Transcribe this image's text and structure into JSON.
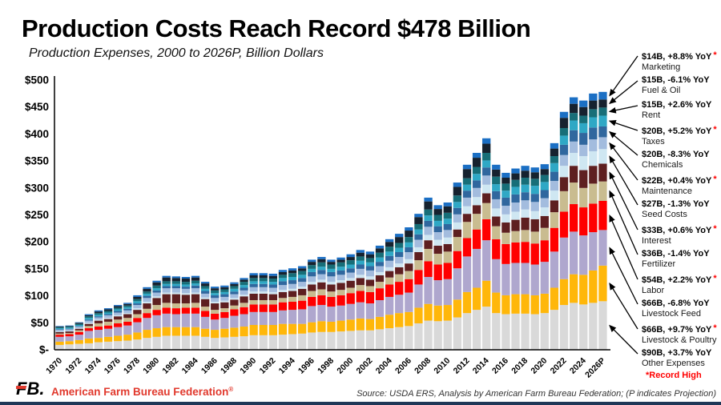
{
  "page": {
    "title": "Production Costs Reach Record $478 Billion",
    "subtitle": "Production Expenses, 2000 to 2026P, Billion Dollars",
    "source_note": "Source: USDA ERS, Analysis by American Farm Bureau Federation; (P indicates Projection)",
    "record_high_note": "*Record High",
    "brand_name": "American Farm Bureau Federation",
    "brand_registered": "®",
    "logo_text": "FB."
  },
  "colors": {
    "brand_red": "#e1392d",
    "record_red": "#ff0000",
    "axis_black": "#000000",
    "bottom_bar_navy": "#1f3757",
    "background": "#ffffff"
  },
  "chart_data": {
    "type": "bar",
    "stacked": true,
    "title": "Production Costs Reach Record $478 Billion",
    "subtitle": "Production Expenses, 2000 to 2026P, Billion Dollars",
    "ylabel": "Billion Dollars",
    "ylim": [
      0,
      500
    ],
    "grid": false,
    "legend_position": "right-callouts",
    "y_tick_labels": [
      "$500",
      "$450",
      "$400",
      "$350",
      "$300",
      "$250",
      "$200",
      "$150",
      "$100",
      "$50",
      "$-"
    ],
    "x": [
      1970,
      1971,
      1972,
      1973,
      1974,
      1975,
      1976,
      1977,
      1978,
      1979,
      1980,
      1981,
      1982,
      1983,
      1984,
      1985,
      1986,
      1987,
      1988,
      1989,
      1990,
      1991,
      1992,
      1993,
      1994,
      1995,
      1996,
      1997,
      1998,
      1999,
      2000,
      2001,
      2002,
      2003,
      2004,
      2005,
      2006,
      2007,
      2008,
      2009,
      2010,
      2011,
      2012,
      2013,
      2014,
      2015,
      2016,
      2017,
      2018,
      2019,
      2020,
      2021,
      2022,
      2023,
      2024,
      2025,
      2026
    ],
    "x_tick_labels": [
      "1970",
      "1972",
      "1974",
      "1976",
      "1978",
      "1980",
      "1982",
      "1984",
      "1986",
      "1988",
      "1990",
      "1992",
      "1994",
      "1996",
      "1998",
      "2000",
      "2002",
      "2004",
      "2006",
      "2008",
      "2010",
      "2012",
      "2014",
      "2016",
      "2018",
      "2020",
      "2022",
      "2024",
      "2026P"
    ],
    "total_2026": 478,
    "series": [
      {
        "name": "Other Expenses",
        "color": "#d9d9d9",
        "callout_value": "$90B, +3.7% YoY",
        "record_high": false,
        "values": [
          9,
          10,
          11,
          12,
          14,
          15,
          16,
          17,
          19,
          22,
          24,
          26,
          26,
          26,
          26,
          24,
          22,
          23,
          24,
          25,
          27,
          27,
          27,
          28,
          29,
          30,
          32,
          33,
          33,
          34,
          35,
          36,
          36,
          38,
          40,
          42,
          44,
          49,
          54,
          53,
          54,
          60,
          68,
          74,
          80,
          68,
          66,
          67,
          67,
          66,
          68,
          74,
          83,
          87,
          84,
          87,
          90
        ]
      },
      {
        "name": "Livestock & Poultry",
        "color": "#ffb70a",
        "callout_value": "$66B, +9.7% YoY",
        "record_high": true,
        "values": [
          6,
          6,
          7,
          9,
          8,
          9,
          10,
          11,
          13,
          15,
          16,
          16,
          16,
          16,
          16,
          15,
          15,
          16,
          17,
          18,
          19,
          19,
          19,
          20,
          19,
          18,
          19,
          20,
          19,
          20,
          21,
          22,
          21,
          23,
          25,
          26,
          26,
          29,
          31,
          29,
          29,
          33,
          39,
          41,
          48,
          38,
          35,
          36,
          36,
          35,
          36,
          41,
          48,
          53,
          55,
          60,
          66
        ]
      },
      {
        "name": "Livestock Feed",
        "color": "#afa7ce",
        "callout_value": "$66B, -6.8% YoY",
        "record_high": false,
        "values": [
          9,
          9,
          10,
          14,
          15,
          15,
          16,
          17,
          19,
          22,
          24,
          25,
          24,
          25,
          25,
          22,
          19,
          20,
          22,
          23,
          24,
          24,
          24,
          25,
          26,
          27,
          30,
          30,
          28,
          28,
          29,
          30,
          29,
          31,
          33,
          34,
          36,
          43,
          50,
          47,
          48,
          58,
          66,
          72,
          75,
          62,
          58,
          58,
          58,
          57,
          59,
          67,
          77,
          79,
          73,
          71,
          66
        ]
      },
      {
        "name": "Labor",
        "color": "#ff0000",
        "callout_value": "$54B, +2.2% YoY",
        "record_high": true,
        "values": [
          4,
          4,
          5,
          5,
          6,
          6,
          7,
          7,
          8,
          9,
          10,
          11,
          11,
          11,
          11,
          11,
          11,
          11,
          12,
          13,
          14,
          14,
          14,
          15,
          15,
          16,
          17,
          18,
          18,
          19,
          20,
          21,
          21,
          22,
          23,
          24,
          25,
          27,
          29,
          29,
          30,
          32,
          34,
          36,
          39,
          37,
          37,
          38,
          39,
          39,
          40,
          44,
          48,
          51,
          52,
          53,
          54
        ]
      },
      {
        "name": "Fertilizer",
        "color": "#c9bc90",
        "callout_value": "$36B, -1.4% YoY",
        "record_high": false,
        "values": [
          2,
          2,
          3,
          4,
          6,
          7,
          7,
          7,
          7,
          8,
          9,
          9,
          9,
          8,
          9,
          8,
          7,
          7,
          7,
          8,
          8,
          8,
          8,
          8,
          9,
          10,
          11,
          11,
          10,
          10,
          10,
          11,
          11,
          12,
          13,
          14,
          15,
          18,
          23,
          20,
          21,
          26,
          30,
          29,
          30,
          24,
          21,
          21,
          22,
          22,
          23,
          29,
          38,
          40,
          36,
          37,
          36
        ]
      },
      {
        "name": "Interest",
        "color": "#5e1f20",
        "callout_value": "$33B, +0.6% YoY",
        "record_high": true,
        "values": [
          3,
          3,
          3,
          4,
          5,
          5,
          6,
          7,
          8,
          10,
          13,
          16,
          17,
          16,
          16,
          14,
          12,
          11,
          11,
          12,
          12,
          12,
          11,
          11,
          11,
          12,
          12,
          13,
          13,
          13,
          13,
          13,
          12,
          12,
          12,
          13,
          14,
          15,
          16,
          15,
          14,
          14,
          15,
          16,
          18,
          18,
          19,
          21,
          23,
          23,
          22,
          22,
          26,
          31,
          33,
          33,
          33
        ]
      },
      {
        "name": "Seed Costs",
        "color": "#cfe7f2",
        "callout_value": "$27B, -1.3% YoY",
        "record_high": false,
        "values": [
          1,
          1,
          1,
          2,
          2,
          2,
          2,
          2,
          3,
          3,
          3,
          3,
          3,
          3,
          3,
          3,
          3,
          3,
          3,
          3,
          4,
          4,
          4,
          4,
          4,
          4,
          5,
          5,
          5,
          5,
          5,
          6,
          6,
          6,
          7,
          7,
          8,
          9,
          10,
          11,
          12,
          13,
          14,
          15,
          16,
          15,
          15,
          15,
          15,
          15,
          16,
          18,
          21,
          24,
          26,
          27,
          27
        ]
      },
      {
        "name": "Maintenance",
        "color": "#a3bcde",
        "callout_value": "$22B, +0.4% YoY",
        "record_high": true,
        "values": [
          3,
          3,
          3,
          4,
          4,
          5,
          5,
          5,
          6,
          7,
          7,
          8,
          8,
          8,
          8,
          7,
          7,
          7,
          7,
          8,
          8,
          8,
          8,
          9,
          9,
          9,
          10,
          10,
          10,
          10,
          10,
          11,
          11,
          11,
          12,
          12,
          13,
          14,
          15,
          14,
          14,
          15,
          16,
          17,
          17,
          17,
          16,
          17,
          17,
          17,
          17,
          18,
          20,
          21,
          21,
          22,
          22
        ]
      },
      {
        "name": "Chemicals",
        "color": "#30679e",
        "callout_value": "$20B, -8.3% YoY",
        "record_high": false,
        "values": [
          1,
          1,
          1,
          2,
          2,
          2,
          3,
          3,
          3,
          4,
          4,
          4,
          4,
          4,
          5,
          5,
          5,
          5,
          5,
          5,
          6,
          6,
          6,
          7,
          7,
          7,
          8,
          8,
          8,
          8,
          8,
          8,
          8,
          8,
          9,
          9,
          9,
          10,
          11,
          11,
          11,
          12,
          13,
          14,
          15,
          15,
          15,
          15,
          15,
          15,
          15,
          17,
          19,
          21,
          22,
          22,
          20
        ]
      },
      {
        "name": "Taxes",
        "color": "#2fa8c5",
        "callout_value": "$20B, +5.2% YoY",
        "record_high": true,
        "values": [
          2,
          2,
          2,
          3,
          3,
          3,
          3,
          3,
          4,
          4,
          4,
          4,
          4,
          4,
          4,
          4,
          4,
          4,
          5,
          5,
          5,
          5,
          5,
          6,
          6,
          6,
          6,
          6,
          6,
          7,
          7,
          7,
          7,
          8,
          8,
          8,
          9,
          9,
          10,
          10,
          10,
          11,
          11,
          12,
          13,
          13,
          13,
          14,
          14,
          15,
          15,
          16,
          17,
          18,
          18,
          19,
          20
        ]
      },
      {
        "name": "Rent",
        "color": "#176e78",
        "callout_value": "$15B, +2.6% YoY",
        "record_high": false,
        "values": [
          2,
          2,
          2,
          3,
          3,
          3,
          3,
          3,
          4,
          4,
          5,
          5,
          5,
          5,
          5,
          5,
          5,
          5,
          5,
          6,
          6,
          6,
          6,
          6,
          7,
          7,
          7,
          8,
          8,
          8,
          8,
          8,
          8,
          9,
          9,
          9,
          10,
          10,
          11,
          11,
          11,
          12,
          12,
          13,
          14,
          14,
          13,
          13,
          13,
          13,
          13,
          13,
          14,
          14,
          14,
          15,
          15
        ]
      },
      {
        "name": "Fuel & Oil",
        "color": "#16222f",
        "callout_value": "$15B, -6.1% YoY",
        "record_high": false,
        "values": [
          1,
          1,
          2,
          2,
          3,
          3,
          3,
          3,
          4,
          5,
          6,
          7,
          6,
          6,
          6,
          5,
          4,
          4,
          4,
          4,
          5,
          5,
          5,
          5,
          5,
          5,
          6,
          6,
          5,
          5,
          6,
          7,
          7,
          8,
          9,
          11,
          12,
          13,
          15,
          11,
          12,
          16,
          17,
          17,
          17,
          13,
          11,
          12,
          13,
          12,
          11,
          14,
          19,
          17,
          16,
          16,
          15
        ]
      },
      {
        "name": "Marketing",
        "color": "#1b6fc4",
        "callout_value": "$14B, +8.8% YoY",
        "record_high": true,
        "values": [
          1,
          1,
          1,
          2,
          2,
          2,
          2,
          2,
          3,
          3,
          3,
          3,
          3,
          3,
          3,
          3,
          3,
          3,
          3,
          3,
          4,
          4,
          4,
          4,
          4,
          4,
          4,
          4,
          4,
          4,
          5,
          5,
          5,
          5,
          5,
          6,
          6,
          6,
          7,
          7,
          7,
          8,
          8,
          9,
          10,
          9,
          9,
          9,
          9,
          9,
          9,
          10,
          11,
          12,
          12,
          13,
          14
        ]
      }
    ]
  }
}
